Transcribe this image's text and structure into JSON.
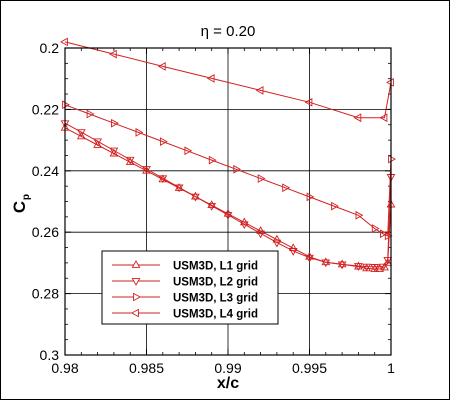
{
  "chart_data": {
    "type": "line",
    "title": "η = 0.20",
    "xlabel": "x/c",
    "ylabel": "C",
    "ylabel_sub": "p",
    "xlim": [
      0.98,
      1.0
    ],
    "ylim": [
      0.3,
      0.2
    ],
    "y_inverted": true,
    "x_ticks": [
      0.98,
      0.985,
      0.99,
      0.995,
      1.0
    ],
    "x_tick_labels": [
      "0.98",
      "0.985",
      "0.99",
      "0.995",
      "1"
    ],
    "y_ticks": [
      0.2,
      0.22,
      0.24,
      0.26,
      0.28,
      0.3
    ],
    "y_tick_labels": [
      "0.2",
      "0.22",
      "0.24",
      "0.26",
      "0.28",
      "0.3"
    ],
    "grid": true,
    "legend_position": "lower-left",
    "line_color": "#d22020",
    "series": [
      {
        "name": "USM3D, L1 grid",
        "marker": "triangle-up",
        "x": [
          0.98,
          0.981,
          0.982,
          0.983,
          0.984,
          0.985,
          0.986,
          0.987,
          0.988,
          0.989,
          0.99,
          0.991,
          0.992,
          0.993,
          0.994,
          0.995,
          0.996,
          0.997,
          0.998,
          0.9985,
          0.999,
          0.9993,
          0.9996,
          0.9998,
          1.0
        ],
        "y": [
          0.226,
          0.2288,
          0.2316,
          0.2344,
          0.2372,
          0.24,
          0.2428,
          0.2456,
          0.2484,
          0.2512,
          0.254,
          0.2568,
          0.2596,
          0.2624,
          0.2652,
          0.268,
          0.2698,
          0.2705,
          0.2712,
          0.2718,
          0.272,
          0.272,
          0.2715,
          0.27,
          0.251
        ]
      },
      {
        "name": "USM3D, L2 grid",
        "marker": "triangle-down",
        "x": [
          0.98,
          0.981,
          0.982,
          0.983,
          0.984,
          0.985,
          0.986,
          0.987,
          0.988,
          0.989,
          0.99,
          0.991,
          0.992,
          0.993,
          0.994,
          0.995,
          0.996,
          0.997,
          0.998,
          0.9985,
          0.999,
          0.9995,
          0.9998,
          1.0
        ],
        "y": [
          0.2245,
          0.2274,
          0.2304,
          0.2334,
          0.2364,
          0.2394,
          0.2424,
          0.2454,
          0.2484,
          0.2514,
          0.2544,
          0.2574,
          0.2604,
          0.2634,
          0.2661,
          0.2683,
          0.2698,
          0.2705,
          0.271,
          0.2712,
          0.2713,
          0.2712,
          0.269,
          0.242
        ]
      },
      {
        "name": "USM3D, L3 grid",
        "marker": "triangle-right",
        "x": [
          0.98,
          0.9815,
          0.983,
          0.9845,
          0.986,
          0.9875,
          0.989,
          0.9905,
          0.992,
          0.9935,
          0.995,
          0.9965,
          0.998,
          0.999,
          0.9995,
          0.9998,
          1.0
        ],
        "y": [
          0.2185,
          0.2215,
          0.2245,
          0.2275,
          0.2305,
          0.2335,
          0.2365,
          0.2395,
          0.2425,
          0.2455,
          0.2485,
          0.2515,
          0.2545,
          0.2588,
          0.2605,
          0.2612,
          0.2362
        ]
      },
      {
        "name": "USM3D, L4 grid",
        "marker": "triangle-left",
        "x": [
          0.98,
          0.983,
          0.986,
          0.989,
          0.992,
          0.995,
          0.998,
          0.9996,
          1.0
        ],
        "y": [
          0.198,
          0.202,
          0.206,
          0.2099,
          0.2138,
          0.2177,
          0.2227,
          0.2227,
          0.2112
        ]
      }
    ]
  }
}
